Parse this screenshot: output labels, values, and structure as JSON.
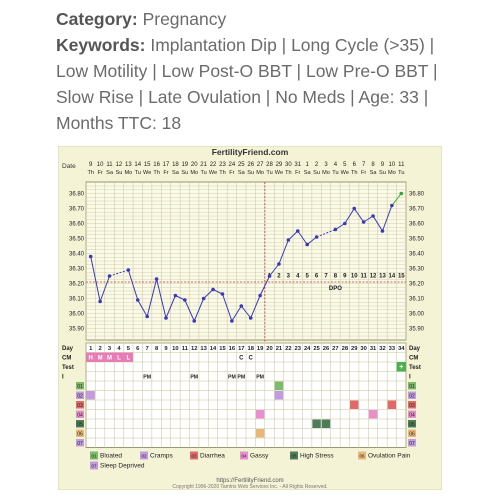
{
  "header": {
    "category_label": "Category:",
    "category_value": "Pregnancy",
    "keywords_label": "Keywords:",
    "keywords_value": "Implantation Dip | Long Cycle (>35) | Low Motility | Low Post-O BBT | Low Pre-O BBT | Slow Rise | Late Ovulation | No Meds | Age: 33 | Months TTC: 18"
  },
  "chart_data": {
    "type": "line",
    "title": "FertilityFriend.com",
    "date_row_label": "Date",
    "date_numbers": [
      "9",
      "10",
      "11",
      "12",
      "13",
      "14",
      "15",
      "16",
      "17",
      "18",
      "19",
      "20",
      "21",
      "22",
      "23",
      "24",
      "25",
      "26",
      "27",
      "28",
      "29",
      "30",
      "31",
      "1",
      "2",
      "3",
      "4",
      "5",
      "6",
      "7",
      "8",
      "9",
      "10",
      "11"
    ],
    "weekdays": [
      "Th",
      "Fr",
      "Sa",
      "Su",
      "Mo",
      "Tu",
      "We",
      "Th",
      "Fr",
      "Sa",
      "Su",
      "Mo",
      "Tu",
      "We",
      "Th",
      "Fr",
      "Sa",
      "Su",
      "Mo",
      "Tu",
      "We",
      "Th",
      "Fr",
      "Sa",
      "Su",
      "Mo",
      "Tu",
      "We",
      "Th",
      "Fr",
      "Sa",
      "Su",
      "Mo",
      "Tu"
    ],
    "ylim": [
      35.85,
      36.85
    ],
    "y_ticks": [
      "36.80",
      "36.70",
      "36.60",
      "36.50",
      "36.40",
      "36.30",
      "36.20",
      "36.10",
      "36.00",
      "35.90"
    ],
    "series": [
      {
        "values": [
          36.38,
          36.08,
          36.25,
          null,
          36.29,
          36.09,
          35.98,
          36.23,
          35.97,
          36.12,
          36.09,
          35.95,
          36.1,
          36.16,
          36.13,
          35.95,
          36.05,
          35.97,
          36.12,
          36.25,
          36.33,
          36.49,
          36.55,
          36.46,
          36.51,
          null,
          36.56,
          36.6,
          36.7,
          36.61,
          36.65,
          36.55,
          36.72,
          36.8
        ]
      }
    ],
    "dashed_segments": [
      [
        2,
        4
      ],
      [
        24,
        26
      ]
    ],
    "coverline_value": 36.21,
    "ovulation_day": 19,
    "dpo_labels": [
      "1",
      "2",
      "3",
      "4",
      "5",
      "6",
      "7",
      "8",
      "9",
      "10",
      "11",
      "12",
      "13",
      "14",
      "15"
    ],
    "dpo_text": "DPO",
    "days_row_label": "Day",
    "day_numbers": [
      "1",
      "2",
      "3",
      "4",
      "5",
      "6",
      "7",
      "8",
      "9",
      "10",
      "11",
      "12",
      "13",
      "14",
      "15",
      "16",
      "17",
      "18",
      "19",
      "20",
      "21",
      "22",
      "23",
      "24",
      "25",
      "26",
      "27",
      "28",
      "29",
      "30",
      "31",
      "32",
      "33",
      "34"
    ],
    "cm_row_label": "CM",
    "cm_values": [
      {
        "day": 1,
        "text": "H"
      },
      {
        "day": 2,
        "text": "M"
      },
      {
        "day": 3,
        "text": "M"
      },
      {
        "day": 4,
        "text": "L"
      },
      {
        "day": 5,
        "text": "L"
      }
    ],
    "cm_marks": [
      {
        "day": 17,
        "text": "C"
      },
      {
        "day": 18,
        "text": "C"
      }
    ],
    "test_row_label": "Test",
    "test_marks": [
      {
        "day": 34,
        "text": "+"
      }
    ],
    "i_row_label": "I",
    "i_marks": [
      {
        "day": 7,
        "text": "PM"
      },
      {
        "day": 12,
        "text": "PM"
      },
      {
        "day": 16,
        "text": "PM"
      },
      {
        "day": 17,
        "text": "PM"
      },
      {
        "day": 19,
        "text": "PM"
      }
    ],
    "symptom_rows": [
      "01",
      "02",
      "03",
      "04",
      "05",
      "06",
      "07"
    ],
    "symptom_cells": [
      {
        "row": 0,
        "day": 21,
        "color": "#7dbb6a"
      },
      {
        "row": 1,
        "day": 1,
        "color": "#c39be0"
      },
      {
        "row": 1,
        "day": 21,
        "color": "#c39be0"
      },
      {
        "row": 2,
        "day": 33,
        "color": "#e06a6a"
      },
      {
        "row": 2,
        "day": 29,
        "color": "#e06a6a"
      },
      {
        "row": 3,
        "day": 19,
        "color": "#e88fd0"
      },
      {
        "row": 3,
        "day": 31,
        "color": "#e88fd0"
      },
      {
        "row": 4,
        "day": 25,
        "color": "#4e7d5b"
      },
      {
        "row": 4,
        "day": 26,
        "color": "#4e7d5b"
      },
      {
        "row": 5,
        "day": 19,
        "color": "#e8b87a"
      }
    ],
    "legend": [
      {
        "code": "01",
        "label": "Bloated",
        "color": "#7dbb6a"
      },
      {
        "code": "02",
        "label": "Cramps",
        "color": "#c39be0"
      },
      {
        "code": "03",
        "label": "Diarrhea",
        "color": "#e06a6a"
      },
      {
        "code": "04",
        "label": "Gassy",
        "color": "#e88fd0"
      },
      {
        "code": "05",
        "label": "High Stress",
        "color": "#4e7d5b"
      },
      {
        "code": "06",
        "label": "Ovulation Pain",
        "color": "#e8b87a"
      },
      {
        "code": "07",
        "label": "Sleep Deprived",
        "color": "#c39be0"
      }
    ],
    "footer_url": "https://FertilityFriend.com",
    "footer_copyright": "Copyright 1996-2020 Tamtris Web Services Inc. - All Rights Reserved."
  },
  "colors": {
    "chart_bg": "#f5f3d6",
    "grid": "#c9c59a",
    "line": "#3a3ab8",
    "coverline": "#c0392b",
    "last_point": "#2ea82e"
  }
}
